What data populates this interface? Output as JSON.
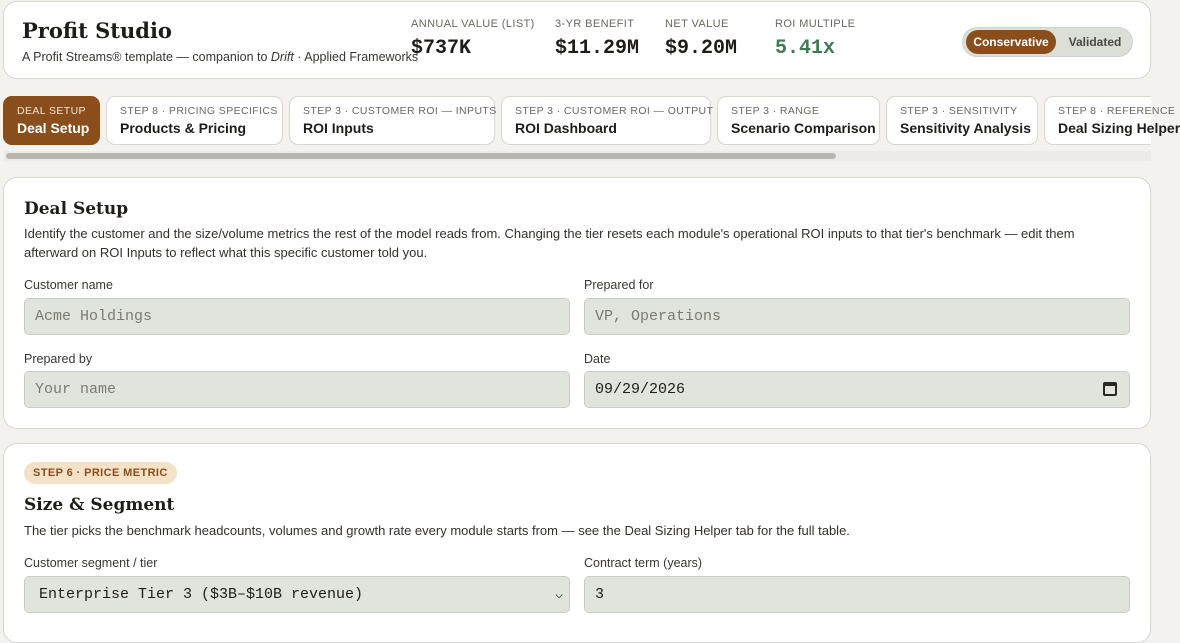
{
  "header": {
    "title": "Profit Studio",
    "subtitle_prefix": "A Profit Streams® template — companion to ",
    "subtitle_em": "Drift",
    "subtitle_suffix": " · Applied Frameworks",
    "metrics": [
      {
        "label": "ANNUAL VALUE (LIST)",
        "value": "$737K"
      },
      {
        "label": "3-YR BENEFIT",
        "value": "$11.29M"
      },
      {
        "label": "NET VALUE",
        "value": "$9.20M"
      },
      {
        "label": "ROI MULTIPLE",
        "value": "5.41x"
      }
    ],
    "toggle": {
      "on": "Conservative",
      "off": "Validated"
    },
    "colors": {
      "accent": "#8a4e1c",
      "roi_green": "#3f7a57"
    }
  },
  "tabs": [
    {
      "step": "DEAL SETUP",
      "name": "Deal Setup"
    },
    {
      "step": "STEP 8 · PRICING SPECIFICS",
      "name": "Products & Pricing"
    },
    {
      "step": "STEP 3 · CUSTOMER ROI — INPUTS",
      "name": "ROI Inputs"
    },
    {
      "step": "STEP 3 · CUSTOMER ROI — OUTPUT",
      "name": "ROI Dashboard"
    },
    {
      "step": "STEP 3 · RANGE",
      "name": "Scenario Comparison"
    },
    {
      "step": "STEP 3 · SENSITIVITY",
      "name": "Sensitivity Analysis"
    },
    {
      "step": "STEP 8 · REFERENCE",
      "name": "Deal Sizing Helper"
    }
  ],
  "deal_setup": {
    "title": "Deal Setup",
    "description": "Identify the customer and the size/volume metrics the rest of the model reads from. Changing the tier resets each module's operational ROI inputs to that tier's benchmark — edit them afterward on ROI Inputs to reflect what this specific customer told you.",
    "customer_name": {
      "label": "Customer name",
      "placeholder": "Acme Holdings"
    },
    "prepared_for": {
      "label": "Prepared for",
      "placeholder": "VP, Operations"
    },
    "prepared_by": {
      "label": "Prepared by",
      "placeholder": "Your name"
    },
    "date": {
      "label": "Date",
      "value": "09/29/2026"
    }
  },
  "size_segment": {
    "badge": "STEP 6 · PRICE METRIC",
    "title": "Size & Segment",
    "description": "The tier picks the benchmark headcounts, volumes and growth rate every module starts from — see the Deal Sizing Helper tab for the full table.",
    "segment": {
      "label": "Customer segment / tier",
      "value": "Enterprise Tier 3 ($3B–$10B revenue)"
    },
    "term": {
      "label": "Contract term (years)",
      "value": "3"
    }
  }
}
